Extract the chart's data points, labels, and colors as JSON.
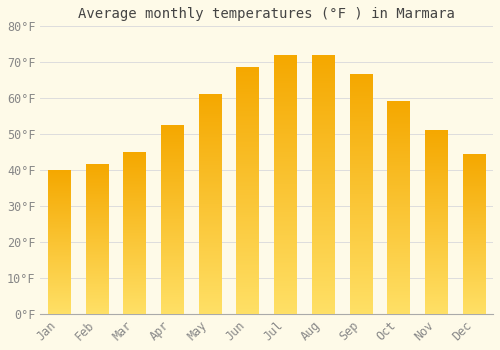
{
  "title": "Average monthly temperatures (°F ) in Marmara",
  "months": [
    "Jan",
    "Feb",
    "Mar",
    "Apr",
    "May",
    "Jun",
    "Jul",
    "Aug",
    "Sep",
    "Oct",
    "Nov",
    "Dec"
  ],
  "values": [
    40,
    41.5,
    45,
    52.5,
    61,
    68.5,
    72,
    72,
    66.5,
    59,
    51,
    44.5
  ],
  "bar_color_top": "#F5A800",
  "bar_color_bottom": "#FFE066",
  "ylim": [
    0,
    80
  ],
  "yticks": [
    0,
    10,
    20,
    30,
    40,
    50,
    60,
    70,
    80
  ],
  "ytick_labels": [
    "0°F",
    "10°F",
    "20°F",
    "30°F",
    "40°F",
    "50°F",
    "60°F",
    "70°F",
    "80°F"
  ],
  "background_color": "#FEFAE8",
  "grid_color": "#DDDDDD",
  "title_fontsize": 10,
  "tick_fontsize": 8.5,
  "bar_width": 0.6
}
